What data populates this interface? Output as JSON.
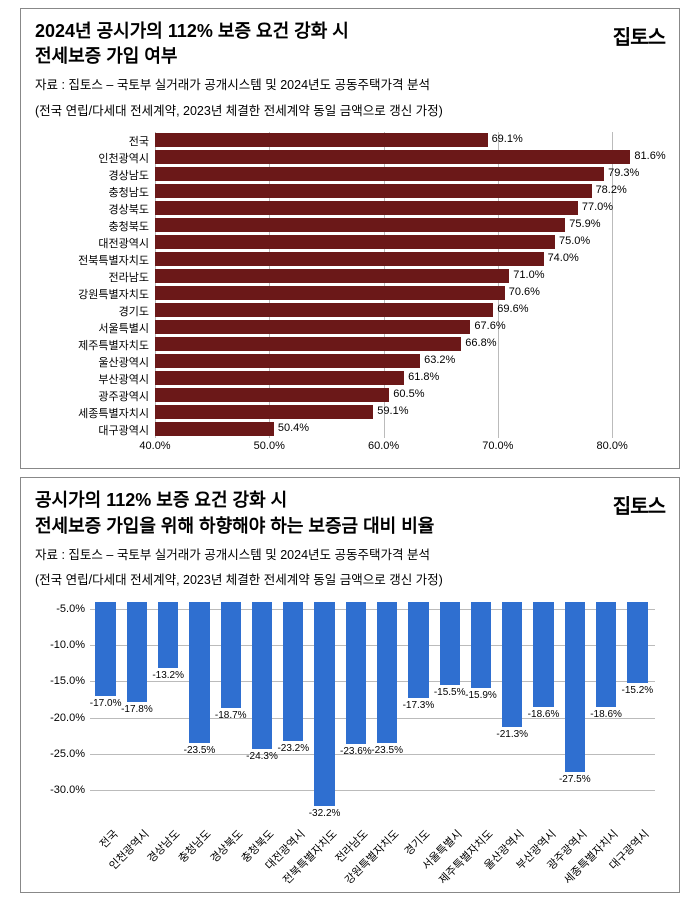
{
  "logo_text": "집토스",
  "chart1": {
    "type": "bar_horizontal",
    "title_line1": "2024년 공시가의 112% 보증 요건 강화 시",
    "title_line2": "전세보증 가입 여부",
    "source_line1": "자료 : 집토스 – 국토부 실거래가 공개시스템 및 2024년도 공동주택가격 분석",
    "source_line2": "(전국 연립/다세대 전세계약, 2023년 체결한 전세계약 동일 금액으로 갱신 가정)",
    "bar_color": "#6b1818",
    "grid_color": "#bbbbbb",
    "text_color": "#000000",
    "label_fontsize": 11,
    "value_fontsize": 11,
    "xmin": 40.0,
    "xmax": 82.0,
    "xtick_step": 10.0,
    "xticks": [
      40.0,
      50.0,
      60.0,
      70.0,
      80.0
    ],
    "xtick_labels": [
      "40.0%",
      "50.0%",
      "60.0%",
      "70.0%",
      "80.0%"
    ],
    "items": [
      {
        "label": "전국",
        "value": 69.1,
        "text": "69.1%"
      },
      {
        "label": "인천광역시",
        "value": 81.6,
        "text": "81.6%"
      },
      {
        "label": "경상남도",
        "value": 79.3,
        "text": "79.3%"
      },
      {
        "label": "충청남도",
        "value": 78.2,
        "text": "78.2%"
      },
      {
        "label": "경상북도",
        "value": 77.0,
        "text": "77.0%"
      },
      {
        "label": "충청북도",
        "value": 75.9,
        "text": "75.9%"
      },
      {
        "label": "대전광역시",
        "value": 75.0,
        "text": "75.0%"
      },
      {
        "label": "전북특별자치도",
        "value": 74.0,
        "text": "74.0%"
      },
      {
        "label": "전라남도",
        "value": 71.0,
        "text": "71.0%"
      },
      {
        "label": "강원특별자치도",
        "value": 70.6,
        "text": "70.6%"
      },
      {
        "label": "경기도",
        "value": 69.6,
        "text": "69.6%"
      },
      {
        "label": "서울특별시",
        "value": 67.6,
        "text": "67.6%"
      },
      {
        "label": "제주특별자치도",
        "value": 66.8,
        "text": "66.8%"
      },
      {
        "label": "울산광역시",
        "value": 63.2,
        "text": "63.2%"
      },
      {
        "label": "부산광역시",
        "value": 61.8,
        "text": "61.8%"
      },
      {
        "label": "광주광역시",
        "value": 60.5,
        "text": "60.5%"
      },
      {
        "label": "세종특별자치시",
        "value": 59.1,
        "text": "59.1%"
      },
      {
        "label": "대구광역시",
        "value": 50.4,
        "text": "50.4%"
      }
    ]
  },
  "chart2": {
    "type": "bar_vertical_negative",
    "title_line1": "공시가의 112% 보증 요건 강화 시",
    "title_line2": "전세보증 가입을 위해 하향해야 하는 보증금 대비 비율",
    "source_line1": "자료 : 집토스 – 국토부 실거래가 공개시스템 및 2024년도 공동주택가격 분석",
    "source_line2": "(전국 연립/다세대 전세계약, 2023년 체결한 전세계약 동일 금액으로 갱신 가정)",
    "bar_color": "#2f6fd0",
    "grid_color": "#bbbbbb",
    "text_color": "#000000",
    "ymin": -33.0,
    "ymax": -4.0,
    "ytick_step": 5.0,
    "yticks": [
      -5.0,
      -10.0,
      -15.0,
      -20.0,
      -25.0,
      -30.0
    ],
    "ytick_labels": [
      "-5.0%",
      "-10.0%",
      "-15.0%",
      "-20.0%",
      "-25.0%",
      "-30.0%"
    ],
    "items": [
      {
        "label": "전국",
        "value": -17.0,
        "text": "-17.0%"
      },
      {
        "label": "인천광역시",
        "value": -17.8,
        "text": "-17.8%"
      },
      {
        "label": "경상남도",
        "value": -13.2,
        "text": "-13.2%"
      },
      {
        "label": "충청남도",
        "value": -23.5,
        "text": "-23.5%"
      },
      {
        "label": "경상북도",
        "value": -18.7,
        "text": "-18.7%"
      },
      {
        "label": "충청북도",
        "value": -24.3,
        "text": "-24.3%"
      },
      {
        "label": "대전광역시",
        "value": -23.2,
        "text": "-23.2%"
      },
      {
        "label": "전북특별자치도",
        "value": -32.2,
        "text": "-32.2%"
      },
      {
        "label": "전라남도",
        "value": -23.6,
        "text": "-23.6%"
      },
      {
        "label": "강원특별자치도",
        "value": -23.5,
        "text": "-23.5%"
      },
      {
        "label": "경기도",
        "value": -17.3,
        "text": "-17.3%"
      },
      {
        "label": "서울특별시",
        "value": -15.5,
        "text": "-15.5%"
      },
      {
        "label": "제주특별자치도",
        "value": -15.9,
        "text": "-15.9%"
      },
      {
        "label": "울산광역시",
        "value": -21.3,
        "text": "-21.3%"
      },
      {
        "label": "부산광역시",
        "value": -18.6,
        "text": "-18.6%"
      },
      {
        "label": "광주광역시",
        "value": -27.5,
        "text": "-27.5%"
      },
      {
        "label": "세종특별자치시",
        "value": -18.6,
        "text": "-18.6%"
      },
      {
        "label": "대구광역시",
        "value": -15.2,
        "text": "-15.2%"
      }
    ]
  }
}
